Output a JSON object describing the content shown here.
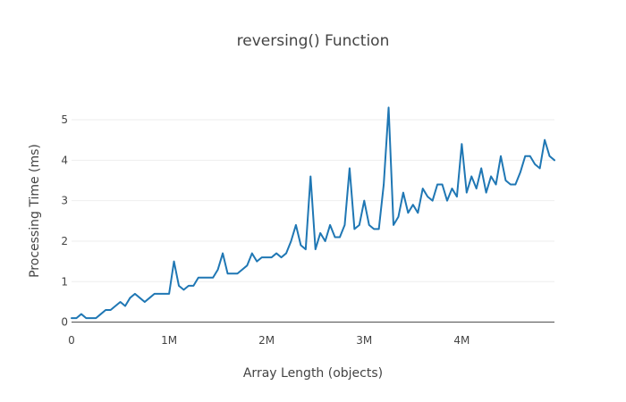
{
  "chart_data": {
    "type": "line",
    "title": "reversing() Function",
    "xlabel": "Array Length (objects)",
    "ylabel": "Processing Time (ms)",
    "xlim": [
      0,
      4950000
    ],
    "ylim": [
      -0.03,
      5.75
    ],
    "x_ticks": [
      {
        "value": 0,
        "label": "0"
      },
      {
        "value": 1000000,
        "label": "1M"
      },
      {
        "value": 2000000,
        "label": "2M"
      },
      {
        "value": 3000000,
        "label": "3M"
      },
      {
        "value": 4000000,
        "label": "4M"
      }
    ],
    "y_ticks": [
      {
        "value": 0,
        "label": "0"
      },
      {
        "value": 1,
        "label": "1"
      },
      {
        "value": 2,
        "label": "2"
      },
      {
        "value": 3,
        "label": "3"
      },
      {
        "value": 4,
        "label": "4"
      },
      {
        "value": 5,
        "label": "5"
      }
    ],
    "grid": true,
    "series": [
      {
        "color": "#1f77b4",
        "x": [
          0,
          50000,
          100000,
          150000,
          200000,
          250000,
          300000,
          350000,
          400000,
          450000,
          500000,
          550000,
          600000,
          650000,
          700000,
          750000,
          800000,
          850000,
          900000,
          950000,
          1000000,
          1050000,
          1100000,
          1150000,
          1200000,
          1250000,
          1300000,
          1350000,
          1400000,
          1450000,
          1500000,
          1550000,
          1600000,
          1650000,
          1700000,
          1750000,
          1800000,
          1850000,
          1900000,
          1950000,
          2000000,
          2050000,
          2100000,
          2150000,
          2200000,
          2250000,
          2300000,
          2350000,
          2400000,
          2450000,
          2500000,
          2550000,
          2600000,
          2650000,
          2700000,
          2750000,
          2800000,
          2850000,
          2900000,
          2950000,
          3000000,
          3050000,
          3100000,
          3150000,
          3200000,
          3250000,
          3300000,
          3350000,
          3400000,
          3450000,
          3500000,
          3550000,
          3600000,
          3650000,
          3700000,
          3750000,
          3800000,
          3850000,
          3900000,
          3950000,
          4000000,
          4050000,
          4100000,
          4150000,
          4200000,
          4250000,
          4300000,
          4350000,
          4400000,
          4450000,
          4500000,
          4550000,
          4600000,
          4650000,
          4700000,
          4750000,
          4800000,
          4850000,
          4900000,
          4950000
        ],
        "values": [
          0.1,
          0.1,
          0.2,
          0.1,
          0.1,
          0.1,
          0.2,
          0.3,
          0.3,
          0.4,
          0.5,
          0.4,
          0.6,
          0.7,
          0.6,
          0.5,
          0.6,
          0.7,
          0.7,
          0.7,
          0.7,
          1.5,
          0.9,
          0.8,
          0.9,
          0.9,
          1.1,
          1.1,
          1.1,
          1.1,
          1.3,
          1.7,
          1.2,
          1.2,
          1.2,
          1.3,
          1.4,
          1.7,
          1.5,
          1.6,
          1.6,
          1.6,
          1.7,
          1.6,
          1.7,
          2.0,
          2.4,
          1.9,
          1.8,
          3.6,
          1.8,
          2.2,
          2.0,
          2.4,
          2.1,
          2.1,
          2.4,
          3.8,
          2.3,
          2.4,
          3.0,
          2.4,
          2.3,
          2.3,
          3.4,
          5.3,
          2.4,
          2.6,
          3.2,
          2.7,
          2.9,
          2.7,
          3.3,
          3.1,
          3.0,
          3.4,
          3.4,
          3.0,
          3.3,
          3.1,
          4.4,
          3.2,
          3.6,
          3.3,
          3.8,
          3.2,
          3.6,
          3.4,
          4.1,
          3.5,
          3.4,
          3.4,
          3.7,
          4.1,
          4.1,
          3.9,
          3.8,
          4.5,
          4.1,
          4.0
        ]
      }
    ]
  }
}
